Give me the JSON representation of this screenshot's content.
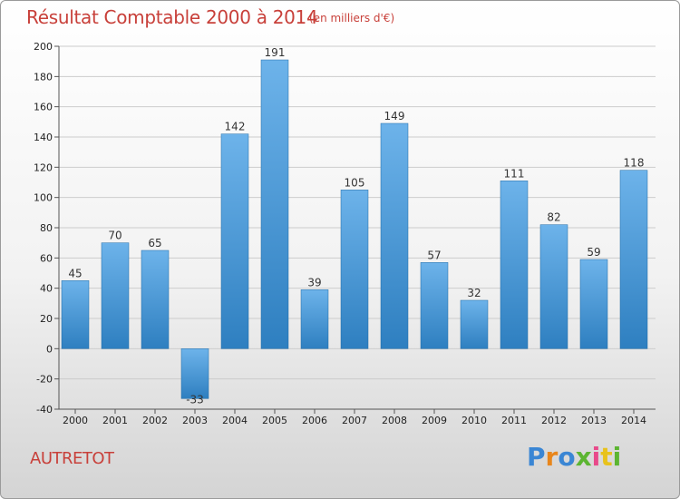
{
  "colors": {
    "title": "#c8403a",
    "bar_top": "#6db3ea",
    "bar_bottom": "#2e7fc0",
    "grid": "#cccccc"
  },
  "chart_data": {
    "type": "bar",
    "title": "Résultat Comptable 2000 à 2014",
    "unit": "(en milliers d'€)",
    "categories": [
      "2000",
      "2001",
      "2002",
      "2003",
      "2004",
      "2005",
      "2006",
      "2007",
      "2008",
      "2009",
      "2010",
      "2011",
      "2012",
      "2013",
      "2014"
    ],
    "values": [
      45,
      70,
      65,
      -33,
      142,
      191,
      39,
      105,
      149,
      57,
      32,
      111,
      82,
      59,
      118
    ],
    "ylim": [
      -40,
      200
    ],
    "yticks": [
      -40,
      -20,
      0,
      20,
      40,
      60,
      80,
      100,
      120,
      140,
      160,
      180,
      200
    ],
    "grid": true,
    "xlabel": "",
    "ylabel": ""
  },
  "footer": {
    "town": "AUTRETOT",
    "logo_letters": [
      "P",
      "r",
      "o",
      "x",
      "i",
      "t",
      "i"
    ]
  }
}
